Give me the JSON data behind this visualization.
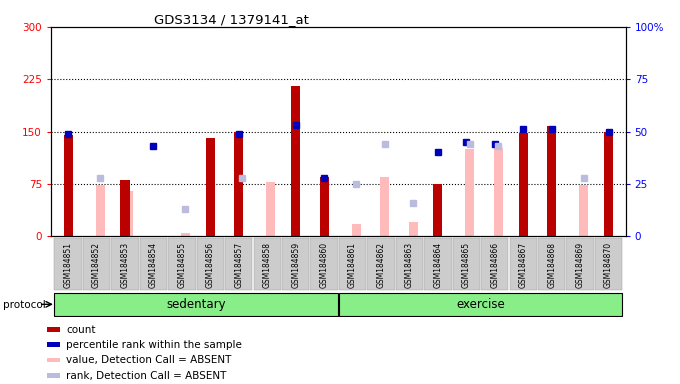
{
  "title": "GDS3134 / 1379141_at",
  "samples": [
    "GSM184851",
    "GSM184852",
    "GSM184853",
    "GSM184854",
    "GSM184855",
    "GSM184856",
    "GSM184857",
    "GSM184858",
    "GSM184859",
    "GSM184860",
    "GSM184861",
    "GSM184862",
    "GSM184863",
    "GSM184864",
    "GSM184865",
    "GSM184866",
    "GSM184867",
    "GSM184868",
    "GSM184869",
    "GSM184870"
  ],
  "count": [
    145,
    0,
    80,
    0,
    0,
    140,
    150,
    0,
    215,
    85,
    0,
    0,
    0,
    75,
    0,
    0,
    148,
    158,
    0,
    150
  ],
  "percentile_rank": [
    49,
    0,
    0,
    43,
    0,
    0,
    49,
    0,
    53,
    28,
    0,
    0,
    0,
    40,
    45,
    44,
    51,
    51,
    0,
    50
  ],
  "value_absent": [
    0,
    73,
    65,
    0,
    5,
    0,
    0,
    78,
    0,
    0,
    18,
    85,
    20,
    0,
    125,
    126,
    0,
    0,
    73,
    0
  ],
  "rank_absent": [
    0,
    28,
    0,
    0,
    13,
    0,
    28,
    0,
    0,
    0,
    25,
    44,
    16,
    0,
    44,
    43,
    0,
    0,
    28,
    0
  ],
  "sedentary_count": 10,
  "exercise_count": 10,
  "ylim_left": [
    0,
    300
  ],
  "ylim_right": [
    0,
    100
  ],
  "yticks_left": [
    0,
    75,
    150,
    225,
    300
  ],
  "yticks_right": [
    0,
    25,
    50,
    75,
    100
  ],
  "hlines": [
    75,
    150,
    225
  ],
  "bar_color_count": "#bb0000",
  "bar_color_rank": "#0000bb",
  "bar_color_value_absent": "#ffbbbb",
  "bar_color_rank_absent": "#bbbbdd",
  "protocol_label": "protocol",
  "sedentary_label": "sedentary",
  "exercise_label": "exercise",
  "group_color": "#88ee88",
  "bg_color": "#ffffff",
  "legend_items": [
    {
      "label": "count",
      "color": "#bb0000"
    },
    {
      "label": "percentile rank within the sample",
      "color": "#0000bb"
    },
    {
      "label": "value, Detection Call = ABSENT",
      "color": "#ffbbbb"
    },
    {
      "label": "rank, Detection Call = ABSENT",
      "color": "#bbbbdd"
    }
  ]
}
